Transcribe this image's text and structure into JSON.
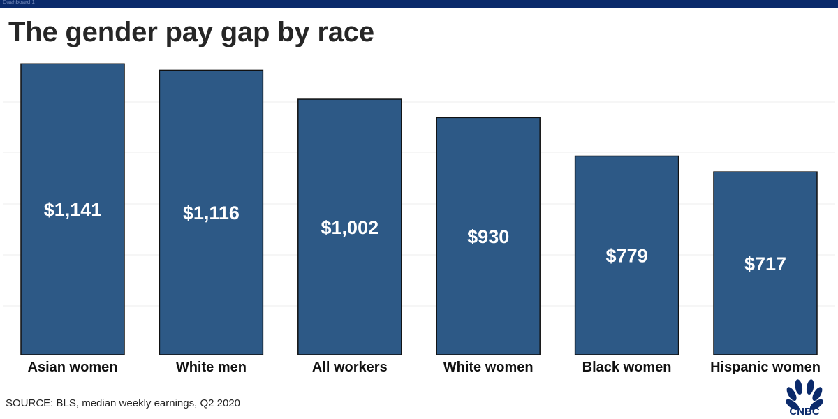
{
  "window": {
    "tab_label": "Dashboard 1"
  },
  "chart_data": {
    "type": "bar",
    "title": "The gender pay gap by race",
    "categories": [
      "Asian women",
      "White men",
      "All workers",
      "White women",
      "Black women",
      "Hispanic women"
    ],
    "values": [
      1141,
      1116,
      1002,
      930,
      779,
      717
    ],
    "value_labels": [
      "$1,141",
      "$1,116",
      "$1,002",
      "$930",
      "$779",
      "$717"
    ],
    "xlabel": "",
    "ylabel": "",
    "ylim": [
      0,
      1150
    ],
    "grid": true,
    "legend": "none"
  },
  "footer": {
    "source": "SOURCE: BLS, median weekly earnings, Q2 2020",
    "logo_text": "CNBC"
  },
  "colors": {
    "bar_fill": "#2d5986",
    "bar_stroke": "#111111",
    "top_bar": "#0a2a6b",
    "gridline": "#eeeeee",
    "logo": "#0b2a6b"
  }
}
